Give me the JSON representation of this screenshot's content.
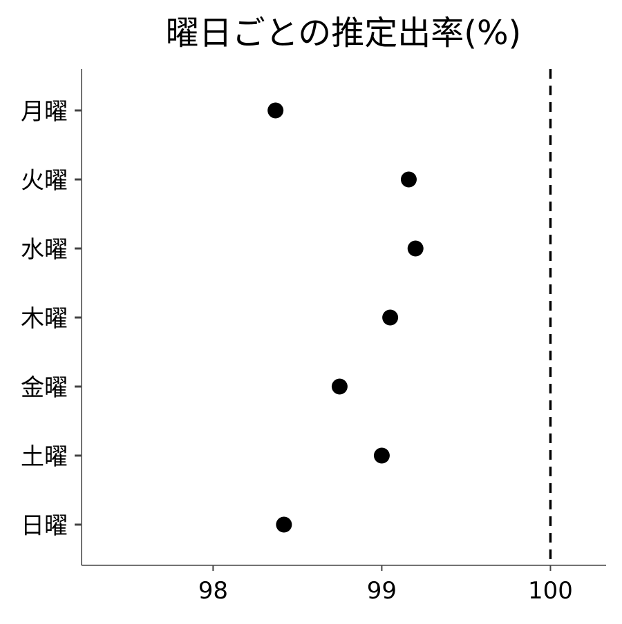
{
  "chart_data": {
    "type": "scatter",
    "title": "曜日ごとの推定出率(%)",
    "xlabel": "",
    "ylabel": "",
    "categories": [
      "月曜",
      "火曜",
      "水曜",
      "木曜",
      "金曜",
      "土曜",
      "日曜"
    ],
    "values": [
      98.37,
      99.16,
      99.2,
      99.05,
      98.75,
      99.0,
      98.42
    ],
    "xlim": [
      97.22,
      100.33
    ],
    "x_ticks": [
      98,
      99,
      100
    ],
    "x_tick_labels": [
      "98",
      "99",
      "100"
    ],
    "reference_line": {
      "x": 100,
      "style": "dashed"
    },
    "grid": false,
    "legend": "none",
    "point_color": "#000000"
  }
}
